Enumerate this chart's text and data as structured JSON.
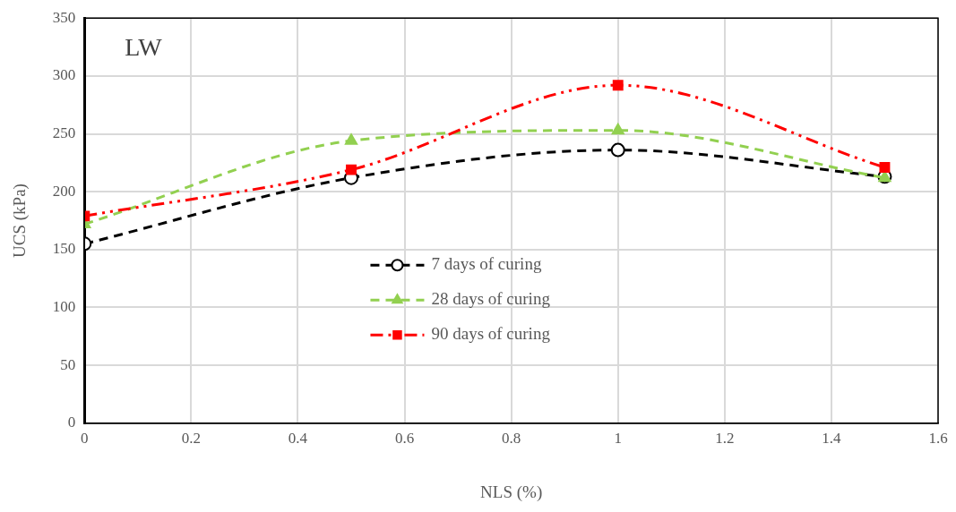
{
  "chart_data": {
    "type": "line",
    "xlabel": "NLS (%)",
    "ylabel": "UCS (kPa)",
    "x": [
      0,
      0.5,
      1,
      1.5
    ],
    "series": [
      {
        "name": "7 days of curing",
        "color": "#000000",
        "marker": "circle",
        "line_style": "dashed",
        "values": [
          155,
          212,
          236,
          213
        ]
      },
      {
        "name": "28 days of curing",
        "color": "#92d050",
        "marker": "triangle",
        "line_style": "dashed",
        "values": [
          172,
          244,
          253,
          212
        ]
      },
      {
        "name": "90 days of curing",
        "color": "#ff0000",
        "marker": "square",
        "line_style": "dotted",
        "values": [
          179,
          219,
          292,
          221
        ]
      }
    ],
    "xlim": [
      0,
      1.6
    ],
    "xticks": [
      0,
      0.2,
      0.4,
      0.6,
      0.8,
      1,
      1.2,
      1.4,
      1.6
    ],
    "ylim": [
      0,
      350
    ],
    "yticks": [
      0,
      50,
      100,
      150,
      200,
      250,
      300,
      350
    ],
    "grid": true,
    "legend": "center",
    "annotations": [
      "LW"
    ]
  }
}
